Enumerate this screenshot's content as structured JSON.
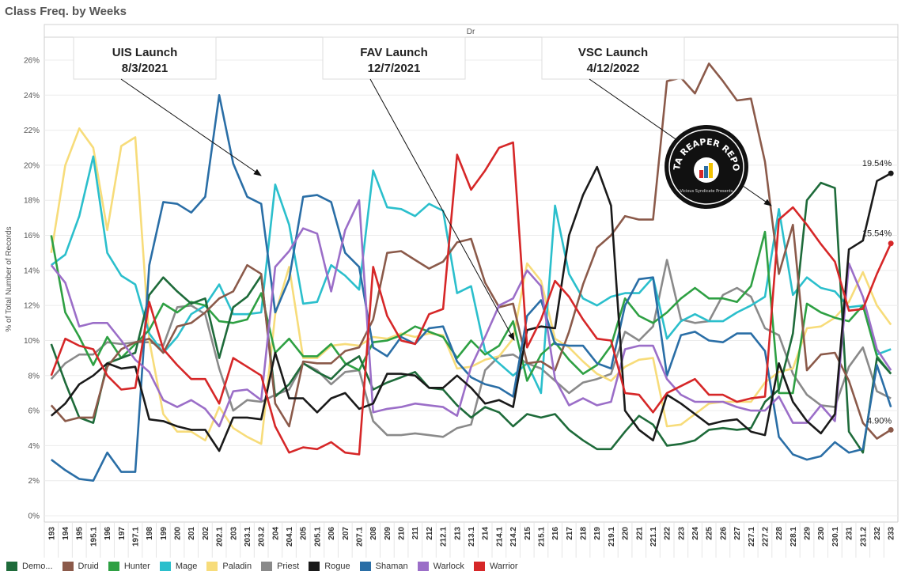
{
  "title": "Class Freq. by Weeks",
  "pane_header": "Dr",
  "chart_data": {
    "type": "line",
    "ylabel": "% of Total Number of Records",
    "ylim": [
      0,
      26
    ],
    "yticks": [
      "0%",
      "2%",
      "4%",
      "6%",
      "8%",
      "10%",
      "12%",
      "14%",
      "16%",
      "18%",
      "20%",
      "22%",
      "24%",
      "26%"
    ],
    "x": [
      "193",
      "194",
      "195",
      "195.1",
      "196",
      "197",
      "197.1",
      "198",
      "199",
      "200",
      "201",
      "202",
      "202.1",
      "203",
      "203.1",
      "203.2",
      "204",
      "204.1",
      "205",
      "205.1",
      "206",
      "207",
      "207.1",
      "208",
      "209",
      "210",
      "211",
      "212",
      "212.1",
      "213",
      "213.1",
      "214",
      "214.1",
      "214.2",
      "215",
      "215.1",
      "216",
      "217",
      "218",
      "219",
      "219.1",
      "220",
      "221",
      "221.1",
      "222",
      "223",
      "224",
      "225",
      "226",
      "227",
      "227.1",
      "227.2",
      "228",
      "228.1",
      "229",
      "230",
      "230.1",
      "231",
      "231.2",
      "232",
      "233"
    ],
    "series": [
      {
        "name": "Demo...",
        "color": "#1e6b3a",
        "values": [
          9.8,
          7.6,
          5.6,
          5.3,
          8.7,
          9.0,
          9.3,
          12.6,
          13.6,
          12.8,
          12.1,
          12.4,
          9.0,
          11.9,
          12.5,
          13.7,
          6.8,
          7.5,
          8.7,
          8.2,
          7.8,
          8.6,
          9.1,
          7.2,
          7.6,
          7.9,
          8.2,
          7.3,
          7.2,
          6.3,
          5.6,
          6.2,
          5.9,
          5.1,
          5.8,
          5.6,
          5.8,
          4.9,
          4.3,
          3.8,
          3.8,
          4.8,
          5.7,
          5.2,
          4.0,
          4.1,
          4.3,
          4.9,
          5.0,
          4.9,
          5.0,
          6.5,
          7.2,
          10.4,
          18.0,
          19.0,
          18.7,
          4.8,
          3.6,
          9.0,
          8.1
        ]
      },
      {
        "name": "Druid",
        "color": "#8b5a4a",
        "values": [
          6.3,
          5.4,
          5.6,
          5.6,
          8.5,
          9.5,
          9.9,
          10.1,
          9.3,
          10.8,
          11.0,
          11.6,
          12.4,
          12.8,
          14.3,
          13.8,
          6.4,
          5.1,
          8.8,
          8.7,
          8.7,
          9.4,
          9.6,
          11.2,
          15.0,
          15.1,
          14.6,
          14.1,
          14.5,
          15.6,
          15.8,
          13.3,
          11.9,
          12.1,
          8.7,
          8.8,
          8.3,
          10.5,
          13.2,
          15.3,
          16.0,
          17.1,
          16.9,
          16.9,
          24.8,
          25.0,
          24.1,
          25.8,
          24.8,
          23.7,
          23.8,
          20.2,
          13.8,
          16.6,
          8.3,
          9.2,
          9.3,
          7.7,
          5.3,
          4.4,
          4.9
        ]
      },
      {
        "name": "Hunter",
        "color": "#2ea043",
        "values": [
          16.0,
          11.6,
          10.2,
          8.6,
          10.2,
          9.0,
          9.8,
          10.6,
          12.1,
          11.6,
          12.2,
          12.0,
          11.1,
          11.0,
          11.2,
          12.7,
          9.3,
          10.1,
          9.1,
          9.1,
          9.8,
          8.7,
          8.3,
          9.9,
          10.0,
          10.3,
          10.8,
          10.5,
          10.2,
          9.0,
          10.0,
          9.2,
          9.7,
          11.1,
          7.7,
          9.2,
          9.9,
          8.9,
          8.1,
          8.6,
          9.7,
          12.4,
          11.4,
          11.0,
          11.6,
          12.4,
          13.0,
          12.4,
          12.4,
          12.2,
          13.1,
          16.2,
          7.0,
          7.0,
          12.1,
          11.6,
          11.3,
          11.1,
          12.0,
          9.1,
          8.1
        ]
      },
      {
        "name": "Mage",
        "color": "#2bbfcc",
        "values": [
          14.3,
          14.9,
          17.1,
          20.5,
          15.0,
          13.7,
          13.2,
          10.4,
          9.3,
          10.2,
          11.5,
          12.0,
          13.2,
          11.5,
          11.5,
          11.6,
          18.9,
          16.6,
          12.1,
          12.2,
          14.3,
          13.7,
          12.9,
          19.7,
          17.6,
          17.5,
          17.1,
          17.8,
          17.4,
          12.7,
          13.1,
          9.4,
          8.7,
          8.0,
          8.7,
          7.0,
          17.7,
          13.8,
          12.4,
          12.0,
          12.5,
          12.7,
          12.7,
          13.6,
          10.1,
          11.1,
          11.5,
          11.1,
          11.1,
          11.6,
          12.0,
          12.5,
          17.5,
          12.6,
          13.6,
          13.0,
          12.8,
          11.9,
          12.0,
          9.2,
          9.5
        ]
      },
      {
        "name": "Paladin",
        "color": "#f7dc7a",
        "values": [
          15.0,
          20.0,
          22.1,
          21.0,
          16.3,
          21.1,
          21.6,
          10.0,
          5.8,
          4.8,
          4.8,
          4.3,
          6.2,
          5.0,
          4.5,
          4.1,
          11.5,
          14.2,
          9.0,
          9.0,
          9.7,
          9.8,
          9.7,
          10.2,
          10.1,
          10.4,
          10.2,
          10.4,
          10.3,
          8.4,
          8.5,
          8.9,
          9.1,
          10.1,
          14.4,
          13.4,
          10.1,
          9.6,
          8.8,
          8.1,
          7.7,
          8.5,
          8.9,
          9.0,
          5.1,
          5.2,
          5.8,
          6.4,
          6.5,
          6.5,
          6.5,
          7.6,
          8.2,
          8.4,
          10.7,
          10.8,
          11.3,
          12.2,
          13.9,
          12.0,
          10.9
        ]
      },
      {
        "name": "Priest",
        "color": "#8a8a8a",
        "values": [
          7.8,
          8.7,
          9.2,
          9.2,
          9.9,
          9.8,
          9.9,
          9.9,
          9.7,
          11.9,
          12.0,
          11.5,
          8.4,
          6.0,
          6.6,
          6.5,
          6.9,
          7.2,
          8.7,
          8.3,
          7.5,
          8.2,
          8.3,
          5.4,
          4.6,
          4.6,
          4.7,
          4.6,
          4.5,
          5.0,
          5.2,
          8.3,
          9.1,
          9.2,
          8.7,
          8.4,
          7.7,
          7.0,
          7.6,
          7.8,
          8.1,
          10.5,
          10.0,
          10.8,
          14.6,
          11.2,
          11.0,
          11.1,
          12.6,
          13.0,
          12.5,
          10.7,
          10.3,
          8.1,
          6.9,
          6.3,
          6.2,
          8.5,
          9.6,
          7.1,
          6.7
        ]
      },
      {
        "name": "Rogue",
        "color": "#1a1a1a",
        "values": [
          5.7,
          6.4,
          7.5,
          8.0,
          8.7,
          8.4,
          8.5,
          5.5,
          5.4,
          5.1,
          4.9,
          4.9,
          3.7,
          5.6,
          5.6,
          5.5,
          9.3,
          6.7,
          6.7,
          5.9,
          6.7,
          7.0,
          6.1,
          6.4,
          8.1,
          8.1,
          8.0,
          7.3,
          7.3,
          8.0,
          7.3,
          6.4,
          6.6,
          6.2,
          10.6,
          10.8,
          10.7,
          16.0,
          18.3,
          19.9,
          17.7,
          6.0,
          4.9,
          4.3,
          6.9,
          6.4,
          5.8,
          5.2,
          5.4,
          5.5,
          4.8,
          4.6,
          8.7,
          6.5,
          5.4,
          4.7,
          5.8,
          15.2,
          15.7,
          19.1,
          19.54
        ]
      },
      {
        "name": "Shaman",
        "color": "#2a6ea6",
        "values": [
          3.2,
          2.6,
          2.1,
          2.0,
          3.6,
          2.5,
          2.5,
          14.3,
          17.9,
          17.8,
          17.3,
          18.2,
          24.0,
          20.1,
          18.2,
          17.8,
          11.6,
          13.5,
          18.2,
          18.3,
          17.9,
          15.0,
          14.2,
          9.6,
          9.1,
          10.2,
          9.8,
          10.7,
          10.8,
          8.8,
          7.9,
          7.5,
          7.3,
          6.8,
          11.4,
          12.3,
          9.8,
          9.7,
          9.7,
          8.7,
          8.4,
          12.0,
          13.5,
          13.6,
          8.0,
          10.3,
          10.5,
          10.0,
          9.9,
          10.4,
          10.4,
          9.4,
          4.5,
          3.5,
          3.2,
          3.4,
          4.2,
          3.6,
          3.8,
          8.6,
          6.2
        ]
      },
      {
        "name": "Warlock",
        "color": "#9b6ec8",
        "values": [
          14.3,
          13.3,
          10.8,
          11.0,
          11.0,
          10.0,
          8.9,
          8.2,
          6.6,
          6.2,
          6.6,
          6.1,
          5.1,
          7.1,
          7.2,
          6.6,
          14.2,
          15.1,
          16.4,
          16.1,
          12.8,
          16.3,
          18.0,
          5.9,
          6.1,
          6.2,
          6.4,
          6.3,
          6.2,
          5.7,
          8.5,
          10.2,
          12.0,
          12.4,
          14.0,
          13.1,
          7.8,
          6.3,
          6.7,
          6.3,
          6.5,
          9.5,
          9.7,
          9.7,
          7.8,
          6.9,
          6.5,
          6.5,
          6.5,
          6.2,
          6.0,
          6.0,
          6.8,
          5.3,
          5.3,
          6.3,
          5.4,
          14.4,
          12.5,
          9.5,
          8.3
        ]
      },
      {
        "name": "Warrior",
        "color": "#d62728",
        "values": [
          8.0,
          10.1,
          9.7,
          9.5,
          8.0,
          7.2,
          7.3,
          12.2,
          9.5,
          8.6,
          7.8,
          7.8,
          6.4,
          9.0,
          8.5,
          8.0,
          5.1,
          3.6,
          3.9,
          3.8,
          4.2,
          3.6,
          3.5,
          14.2,
          11.4,
          10.0,
          9.8,
          11.5,
          11.8,
          20.6,
          18.6,
          19.7,
          21.0,
          21.3,
          9.6,
          11.2,
          13.4,
          12.5,
          11.2,
          10.1,
          10.0,
          7.0,
          6.9,
          5.9,
          7.0,
          7.4,
          7.8,
          6.9,
          6.9,
          6.5,
          6.7,
          6.8,
          16.9,
          17.6,
          16.6,
          15.5,
          14.5,
          11.7,
          11.8,
          13.8,
          15.54
        ]
      }
    ],
    "end_labels": [
      "19.54%",
      "15.54%",
      "4.90%"
    ],
    "annotations": [
      {
        "line1": "UIS Launch",
        "line2": "8/3/2021"
      },
      {
        "line1": "FAV Launch",
        "line2": "12/7/2021"
      },
      {
        "line1": "VSC Launch",
        "line2": "4/12/2022"
      }
    ],
    "grid": "horizontal",
    "legend_position": "bottom"
  },
  "logo": {
    "text": "DATA REAPER REPORT",
    "subtext": "Vicious Syndicate Presents"
  }
}
